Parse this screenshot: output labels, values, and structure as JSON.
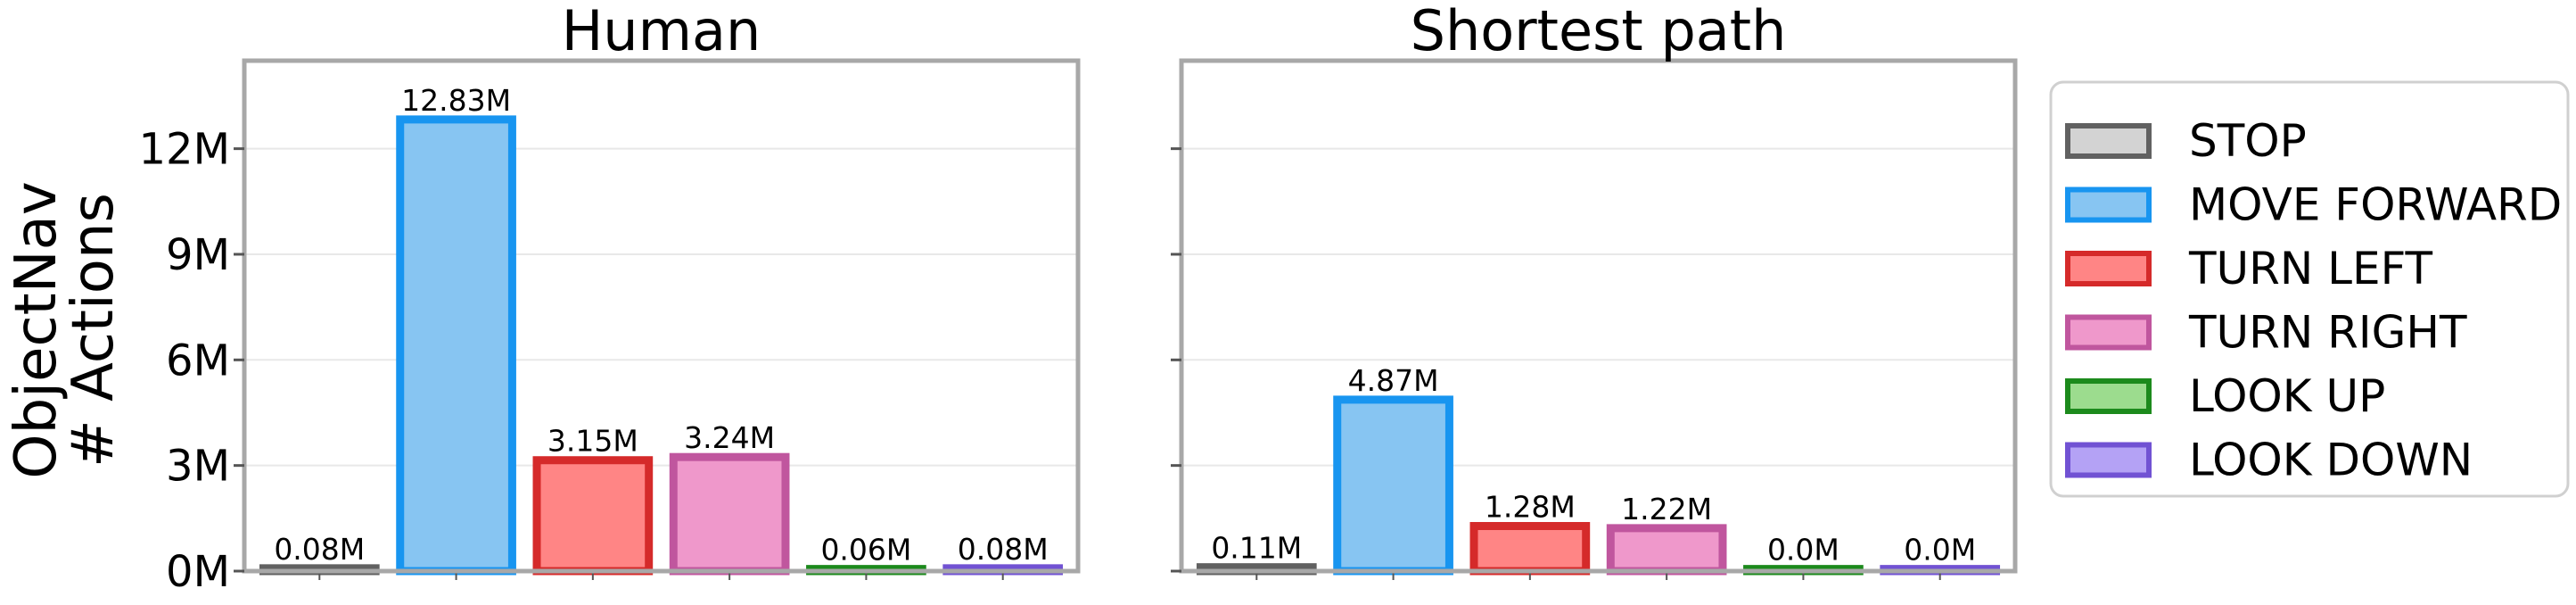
{
  "chart_data": {
    "type": "bar",
    "ylabel": [
      "ObjectNav",
      "# Actions"
    ],
    "ylim": [
      0,
      14.5
    ],
    "yticks": [
      0,
      3,
      6,
      9,
      12
    ],
    "ytick_labels": [
      "0M",
      "3M",
      "6M",
      "9M",
      "12M"
    ],
    "grid": "horizontal",
    "legend_position": "right",
    "legend": [
      {
        "label": "STOP",
        "fill": "#d3d3d3",
        "edge": "#616161"
      },
      {
        "label": "MOVE FORWARD",
        "fill": "#87c5f2",
        "edge": "#1895f0"
      },
      {
        "label": "TURN LEFT",
        "fill": "#ff8585",
        "edge": "#d52a2a"
      },
      {
        "label": "TURN RIGHT",
        "fill": "#ef98cb",
        "edge": "#c0569e"
      },
      {
        "label": "LOOK UP",
        "fill": "#9cdc8e",
        "edge": "#1c8a1c"
      },
      {
        "label": "LOOK DOWN",
        "fill": "#b4a2f5",
        "edge": "#7152d3"
      }
    ],
    "panels": [
      {
        "title": "Human",
        "values": [
          0.08,
          12.83,
          3.15,
          3.24,
          0.06,
          0.08
        ],
        "labels": [
          "0.08M",
          "12.83M",
          "3.15M",
          "3.24M",
          "0.06M",
          "0.08M"
        ]
      },
      {
        "title": "Shortest path",
        "values": [
          0.11,
          4.87,
          1.28,
          1.22,
          0.0,
          0.0
        ],
        "labels": [
          "0.11M",
          "4.87M",
          "1.28M",
          "1.22M",
          "0.0M",
          "0.0M"
        ]
      }
    ]
  }
}
